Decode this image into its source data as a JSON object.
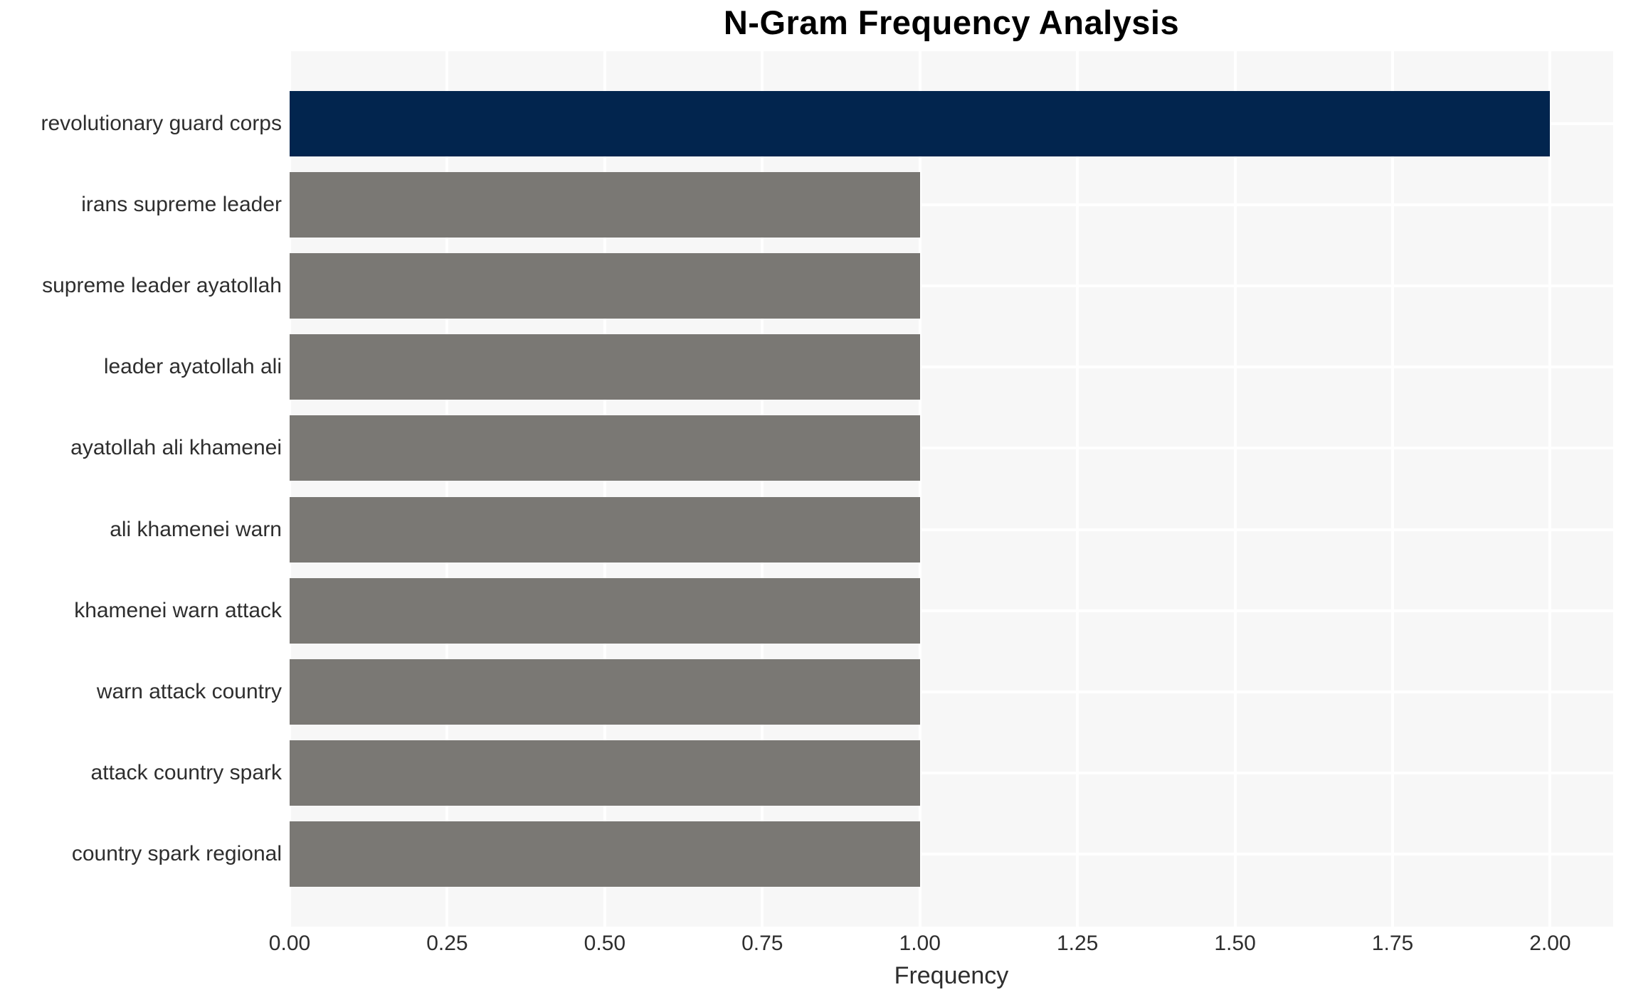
{
  "chart_data": {
    "type": "bar",
    "orientation": "horizontal",
    "title": "N-Gram Frequency Analysis",
    "xlabel": "Frequency",
    "ylabel": "",
    "categories": [
      "revolutionary guard corps",
      "irans supreme leader",
      "supreme leader ayatollah",
      "leader ayatollah ali",
      "ayatollah ali khamenei",
      "ali khamenei warn",
      "khamenei warn attack",
      "warn attack country",
      "attack country spark",
      "country spark regional"
    ],
    "values": [
      2,
      1,
      1,
      1,
      1,
      1,
      1,
      1,
      1,
      1
    ],
    "xlim": [
      0,
      2.1
    ],
    "xtick_labels": [
      "0.00",
      "0.25",
      "0.50",
      "0.75",
      "1.00",
      "1.25",
      "1.50",
      "1.75",
      "2.00"
    ],
    "grid": true,
    "legend": false,
    "colors": {
      "bar_highlight": "#02254E",
      "bar_default": "#7A7874",
      "highlight_index": 0,
      "plot_background": "#F7F7F7",
      "gridline": "#FFFFFF",
      "tick_text": "#2E2E2E",
      "title_text": "#000000",
      "figure_background": "#FFFFFF"
    }
  }
}
